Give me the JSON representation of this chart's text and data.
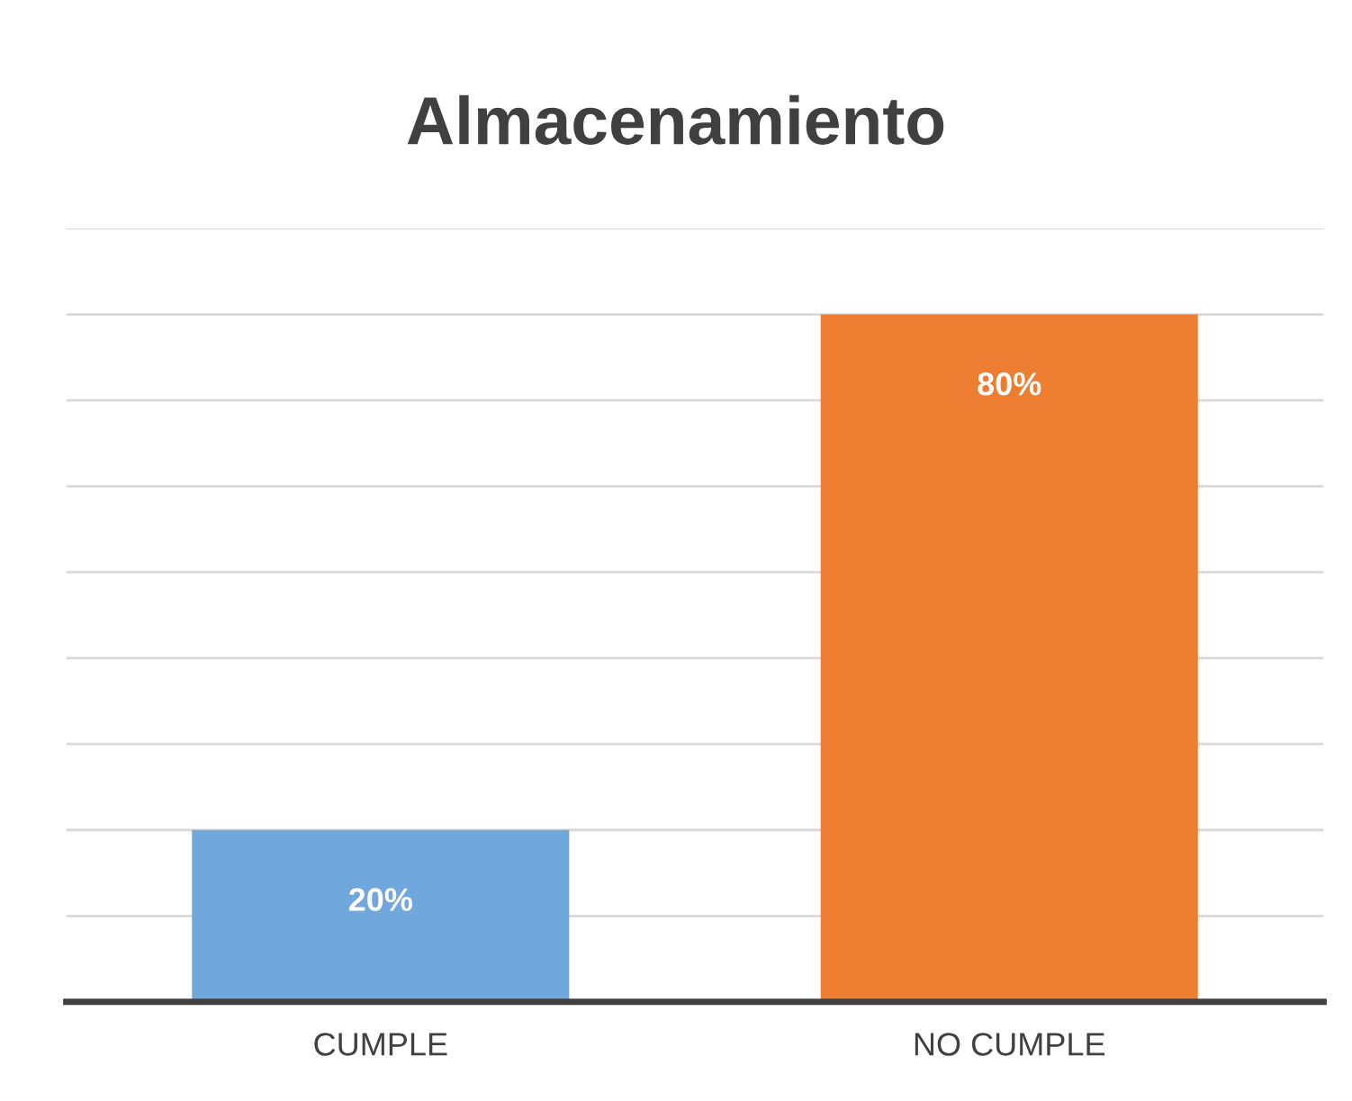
{
  "chart_data": {
    "type": "bar",
    "title": "Almacenamiento",
    "categories": [
      "CUMPLE",
      "NO CUMPLE"
    ],
    "values": [
      20,
      80
    ],
    "colors": [
      "#70a7dc",
      "#ed7d31"
    ],
    "value_labels": [
      "20%",
      "80%"
    ],
    "ylim": [
      0,
      90
    ],
    "yticks": [
      {
        "value": 0,
        "label": null
      },
      {
        "value": 10,
        "label": null
      },
      {
        "value": 20,
        "label": null
      },
      {
        "value": 30,
        "label": null
      },
      {
        "value": 40,
        "label": null
      },
      {
        "value": 50,
        "label": null
      },
      {
        "value": 60,
        "label": null
      },
      {
        "value": 70,
        "label": null
      },
      {
        "value": 80,
        "label": null
      },
      {
        "value": 90,
        "label": null
      }
    ],
    "grid": "y",
    "legend": false,
    "tick_labels": "x"
  }
}
